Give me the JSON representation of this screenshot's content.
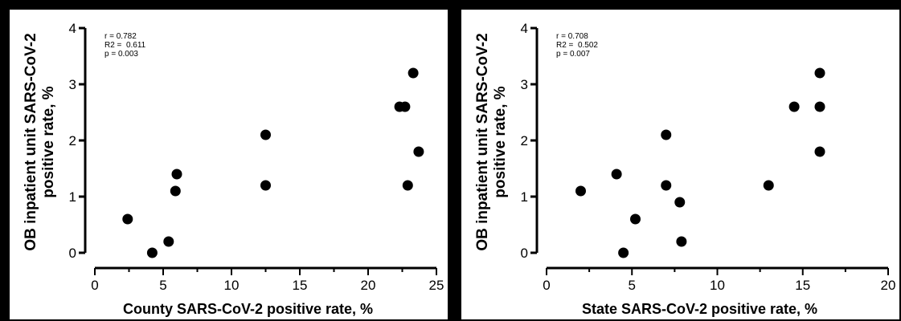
{
  "chart_data": [
    {
      "type": "scatter",
      "xlabel": "County SARS-CoV-2 positive rate, %",
      "ylabel_lines": [
        "OB inpatient unit SARS-CoV-2",
        "positive rate, %"
      ],
      "xlim": [
        0,
        25
      ],
      "ylim": [
        0,
        4
      ],
      "xticks": [
        0,
        5,
        10,
        15,
        20,
        25
      ],
      "yticks": [
        0,
        1,
        2,
        3,
        4
      ],
      "stats": [
        "r = 0.782",
        "R2 =  0.611",
        "p = 0.003"
      ],
      "points": [
        {
          "x": 2.4,
          "y": 0.6
        },
        {
          "x": 4.2,
          "y": 0.0
        },
        {
          "x": 5.4,
          "y": 0.2
        },
        {
          "x": 5.9,
          "y": 1.1
        },
        {
          "x": 6.0,
          "y": 1.4
        },
        {
          "x": 12.5,
          "y": 2.1
        },
        {
          "x": 12.5,
          "y": 1.2
        },
        {
          "x": 22.3,
          "y": 2.6
        },
        {
          "x": 22.7,
          "y": 2.6
        },
        {
          "x": 22.9,
          "y": 1.2
        },
        {
          "x": 23.3,
          "y": 3.2
        },
        {
          "x": 23.7,
          "y": 1.8
        }
      ]
    },
    {
      "type": "scatter",
      "xlabel": "State SARS-CoV-2 positive rate, %",
      "ylabel_lines": [
        "OB inpatient unit SARS-CoV-2",
        "positive rate, %"
      ],
      "xlim": [
        0,
        20
      ],
      "ylim": [
        0,
        4
      ],
      "xticks": [
        0,
        5,
        10,
        15,
        20
      ],
      "yticks": [
        0,
        1,
        2,
        3,
        4
      ],
      "stats": [
        "r = 0.708",
        "R2 =  0.502",
        "p = 0.007"
      ],
      "points": [
        {
          "x": 2.0,
          "y": 1.1
        },
        {
          "x": 4.1,
          "y": 1.4
        },
        {
          "x": 4.5,
          "y": 0.0
        },
        {
          "x": 5.2,
          "y": 0.6
        },
        {
          "x": 7.0,
          "y": 2.1
        },
        {
          "x": 7.0,
          "y": 1.2
        },
        {
          "x": 7.8,
          "y": 0.9
        },
        {
          "x": 7.9,
          "y": 0.2
        },
        {
          "x": 13.0,
          "y": 1.2
        },
        {
          "x": 14.5,
          "y": 2.6
        },
        {
          "x": 16.0,
          "y": 3.2
        },
        {
          "x": 16.0,
          "y": 2.6
        },
        {
          "x": 16.0,
          "y": 1.8
        }
      ]
    }
  ]
}
